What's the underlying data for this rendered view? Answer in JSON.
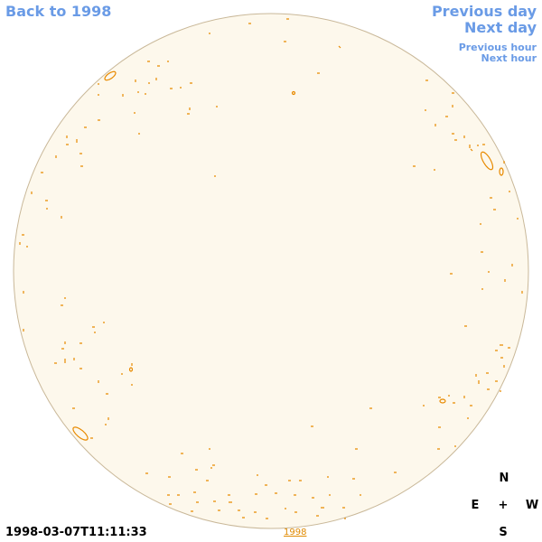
{
  "nav": {
    "back": "Back to 1998",
    "previous_day": "Previous day",
    "next_day": "Next day",
    "previous_hour": "Previous hour",
    "next_hour": "Next hour"
  },
  "timestamp": "1998-03-07T11:11:33",
  "year_link": "1998",
  "compass": {
    "north": "N",
    "east": "E",
    "center": "+",
    "west": "W",
    "south": "S"
  }
}
